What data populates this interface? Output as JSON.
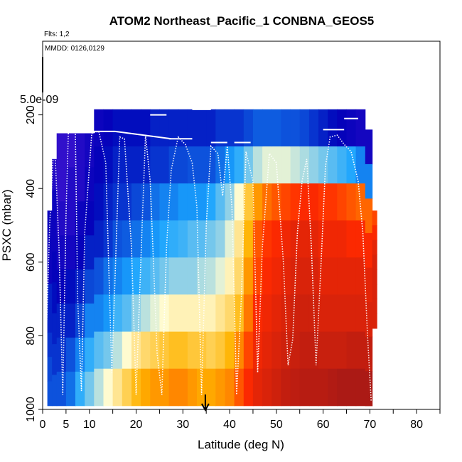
{
  "chart_data": {
    "type": "heatmap",
    "title": "ATOM2 Northeast_Pacific_1 CONBNA_GEOS5",
    "xlabel": "Latitude (deg N)",
    "ylabel": "PSXC (mbar)",
    "flights_note": "Flts: 1,2",
    "dates_note": "MMDD: 0126,0129",
    "scale_note": "5.0e-09",
    "xlim": [
      0,
      85
    ],
    "ylim": [
      1000,
      0
    ],
    "x_ticks": [
      0,
      5,
      10,
      20,
      30,
      40,
      50,
      60,
      70,
      80
    ],
    "x_tick_labels": [
      "0",
      "5",
      "10",
      "20",
      "30",
      "40",
      "50",
      "60",
      "70",
      "80"
    ],
    "x_minor_ticks": [
      15,
      25,
      35,
      45,
      55,
      65,
      75,
      85
    ],
    "y_ticks": [
      200,
      400,
      600,
      800,
      1000
    ],
    "y_tick_labels": [
      "200",
      "400",
      "600",
      "800",
      "1000"
    ],
    "arrow_latitude": 34.8,
    "colors": {
      "high": "#a01818",
      "mid_high": "#ff2a00",
      "mid": "#ffb300",
      "pale": "#fffbd0",
      "low_mid": "#19a4ff",
      "low": "#0000b8",
      "lowest": "#7a28e8",
      "flight_track": "#ffffff"
    },
    "flight_track": [
      [
        0.4,
        960
      ],
      [
        1.5,
        500
      ],
      [
        2.5,
        250
      ],
      [
        3.5,
        560
      ],
      [
        4.3,
        960
      ],
      [
        5.0,
        470
      ],
      [
        5.5,
        245
      ],
      [
        7.0,
        245
      ],
      [
        7.5,
        700
      ],
      [
        8.3,
        950
      ],
      [
        9.0,
        520
      ],
      [
        10.5,
        250
      ],
      [
        12,
        245
      ],
      [
        13.5,
        330
      ],
      [
        14.8,
        900
      ],
      [
        15.5,
        640
      ],
      [
        16.5,
        260
      ],
      [
        17.5,
        265
      ],
      [
        19.0,
        560
      ],
      [
        20.0,
        960
      ],
      [
        21.0,
        600
      ],
      [
        22.0,
        255
      ],
      [
        23.0,
        380
      ],
      [
        24.5,
        850
      ],
      [
        25.5,
        960
      ],
      [
        26.5,
        560
      ],
      [
        27.5,
        350
      ],
      [
        29.0,
        260
      ],
      [
        30.5,
        280
      ],
      [
        32.0,
        330
      ],
      [
        33.0,
        450
      ],
      [
        34.0,
        960
      ],
      [
        35.0,
        500
      ],
      [
        36.0,
        285
      ],
      [
        37.5,
        305
      ],
      [
        38.5,
        420
      ],
      [
        39.5,
        285
      ],
      [
        40.5,
        450
      ],
      [
        41.5,
        960
      ],
      [
        42.5,
        700
      ],
      [
        43.5,
        300
      ],
      [
        45.0,
        380
      ],
      [
        46.0,
        900
      ],
      [
        47.0,
        560
      ],
      [
        48.5,
        305
      ],
      [
        50.0,
        330
      ],
      [
        51.5,
        600
      ],
      [
        52.5,
        880
      ],
      [
        53.5,
        810
      ],
      [
        54.5,
        520
      ],
      [
        55.5,
        380
      ],
      [
        56.5,
        320
      ],
      [
        57.5,
        560
      ],
      [
        58.5,
        880
      ],
      [
        59.5,
        620
      ],
      [
        60.5,
        340
      ],
      [
        61.5,
        260
      ],
      [
        63.0,
        255
      ],
      [
        64.5,
        280
      ],
      [
        66.0,
        300
      ],
      [
        67.5,
        380
      ],
      [
        68.5,
        520
      ],
      [
        69.5,
        800
      ],
      [
        70.3,
        980
      ]
    ],
    "flight_top_segments": [
      [
        2.5,
        245,
        7.5,
        245
      ],
      [
        7.5,
        245,
        15.5,
        245
      ],
      [
        15.5,
        245,
        27.5,
        265
      ],
      [
        23.0,
        200,
        26.5,
        200
      ],
      [
        27.0,
        265,
        29.0,
        265
      ],
      [
        29.0,
        265,
        32.0,
        265
      ],
      [
        32.0,
        185,
        36.0,
        185
      ],
      [
        36.0,
        275,
        39.5,
        275
      ],
      [
        41.0,
        275,
        44.5,
        275
      ],
      [
        60.0,
        240,
        64.5,
        240
      ],
      [
        64.5,
        210,
        67.5,
        210
      ]
    ],
    "heatmap_columns": [
      {
        "x0": 1.0,
        "x1": 2.0,
        "top": 460,
        "bottom": 990,
        "v": [
          0.15,
          0.15,
          0.15,
          0.2,
          0.2,
          0.22,
          0.24,
          0.25
        ]
      },
      {
        "x0": 2.0,
        "x1": 3.0,
        "top": 320,
        "bottom": 990,
        "v": [
          0.12,
          0.15,
          0.15,
          0.16,
          0.18,
          0.2,
          0.22,
          0.25
        ]
      },
      {
        "x0": 3.0,
        "x1": 5.0,
        "top": 250,
        "bottom": 990,
        "v": [
          0.1,
          0.1,
          0.12,
          0.14,
          0.16,
          0.2,
          0.22,
          0.25
        ]
      },
      {
        "x0": 5.0,
        "x1": 7.0,
        "top": 250,
        "bottom": 990,
        "v": [
          0.1,
          0.12,
          0.12,
          0.14,
          0.18,
          0.2,
          0.25,
          0.28
        ]
      },
      {
        "x0": 7.0,
        "x1": 9.0,
        "top": 250,
        "bottom": 990,
        "v": [
          0.12,
          0.12,
          0.15,
          0.16,
          0.2,
          0.24,
          0.3,
          0.35
        ]
      },
      {
        "x0": 9.0,
        "x1": 11.0,
        "top": 250,
        "bottom": 990,
        "v": [
          0.14,
          0.15,
          0.16,
          0.2,
          0.24,
          0.3,
          0.35,
          0.4
        ]
      },
      {
        "x0": 11.0,
        "x1": 13.0,
        "top": 185,
        "bottom": 990,
        "v": [
          0.15,
          0.16,
          0.18,
          0.2,
          0.25,
          0.3,
          0.38,
          0.45
        ]
      },
      {
        "x0": 13.0,
        "x1": 15.0,
        "top": 185,
        "bottom": 990,
        "v": [
          0.16,
          0.18,
          0.2,
          0.22,
          0.28,
          0.32,
          0.4,
          0.5
        ]
      },
      {
        "x0": 15.0,
        "x1": 17.0,
        "top": 185,
        "bottom": 990,
        "v": [
          0.18,
          0.2,
          0.22,
          0.25,
          0.3,
          0.36,
          0.45,
          0.55
        ]
      },
      {
        "x0": 17.0,
        "x1": 19.0,
        "top": 185,
        "bottom": 990,
        "v": [
          0.18,
          0.2,
          0.22,
          0.26,
          0.32,
          0.38,
          0.5,
          0.6
        ]
      },
      {
        "x0": 19.0,
        "x1": 21.0,
        "top": 185,
        "bottom": 990,
        "v": [
          0.18,
          0.2,
          0.24,
          0.28,
          0.34,
          0.42,
          0.55,
          0.65
        ]
      },
      {
        "x0": 21.0,
        "x1": 23.0,
        "top": 185,
        "bottom": 990,
        "v": [
          0.18,
          0.2,
          0.25,
          0.3,
          0.36,
          0.45,
          0.58,
          0.68
        ]
      },
      {
        "x0": 23.0,
        "x1": 25.0,
        "top": 185,
        "bottom": 990,
        "v": [
          0.2,
          0.22,
          0.28,
          0.32,
          0.38,
          0.48,
          0.6,
          0.7
        ]
      },
      {
        "x0": 25.0,
        "x1": 27.0,
        "top": 185,
        "bottom": 990,
        "v": [
          0.2,
          0.22,
          0.3,
          0.34,
          0.4,
          0.5,
          0.62,
          0.7
        ]
      },
      {
        "x0": 27.0,
        "x1": 29.0,
        "top": 185,
        "bottom": 990,
        "v": [
          0.2,
          0.24,
          0.3,
          0.35,
          0.42,
          0.52,
          0.64,
          0.72
        ]
      },
      {
        "x0": 29.0,
        "x1": 31.0,
        "top": 185,
        "bottom": 990,
        "v": [
          0.2,
          0.24,
          0.32,
          0.36,
          0.42,
          0.52,
          0.64,
          0.72
        ]
      },
      {
        "x0": 31.0,
        "x1": 33.0,
        "top": 185,
        "bottom": 990,
        "v": [
          0.2,
          0.25,
          0.32,
          0.38,
          0.42,
          0.52,
          0.62,
          0.7
        ]
      },
      {
        "x0": 33.0,
        "x1": 35.0,
        "top": 185,
        "bottom": 990,
        "v": [
          0.2,
          0.25,
          0.32,
          0.38,
          0.44,
          0.52,
          0.62,
          0.68
        ]
      },
      {
        "x0": 35.0,
        "x1": 37.0,
        "top": 185,
        "bottom": 990,
        "v": [
          0.2,
          0.25,
          0.34,
          0.4,
          0.45,
          0.52,
          0.6,
          0.68
        ]
      },
      {
        "x0": 37.0,
        "x1": 39.0,
        "top": 185,
        "bottom": 990,
        "v": [
          0.22,
          0.28,
          0.38,
          0.42,
          0.48,
          0.55,
          0.62,
          0.7
        ]
      },
      {
        "x0": 39.0,
        "x1": 41.0,
        "top": 185,
        "bottom": 990,
        "v": [
          0.22,
          0.32,
          0.42,
          0.48,
          0.52,
          0.58,
          0.66,
          0.72
        ]
      },
      {
        "x0": 41.0,
        "x1": 43.0,
        "top": 185,
        "bottom": 990,
        "v": [
          0.22,
          0.35,
          0.5,
          0.55,
          0.58,
          0.64,
          0.72,
          0.78
        ]
      },
      {
        "x0": 43.0,
        "x1": 45.0,
        "top": 185,
        "bottom": 990,
        "v": [
          0.24,
          0.4,
          0.62,
          0.66,
          0.7,
          0.74,
          0.8,
          0.84
        ]
      },
      {
        "x0": 45.0,
        "x1": 47.0,
        "top": 185,
        "bottom": 990,
        "v": [
          0.26,
          0.45,
          0.7,
          0.78,
          0.8,
          0.84,
          0.86,
          0.88
        ]
      },
      {
        "x0": 47.0,
        "x1": 49.0,
        "top": 185,
        "bottom": 990,
        "v": [
          0.26,
          0.48,
          0.75,
          0.82,
          0.84,
          0.86,
          0.88,
          0.9
        ]
      },
      {
        "x0": 49.0,
        "x1": 51.0,
        "top": 185,
        "bottom": 990,
        "v": [
          0.26,
          0.48,
          0.78,
          0.84,
          0.86,
          0.88,
          0.9,
          0.92
        ]
      },
      {
        "x0": 51.0,
        "x1": 53.0,
        "top": 185,
        "bottom": 990,
        "v": [
          0.25,
          0.48,
          0.8,
          0.86,
          0.88,
          0.9,
          0.92,
          0.94
        ]
      },
      {
        "x0": 53.0,
        "x1": 55.0,
        "top": 185,
        "bottom": 990,
        "v": [
          0.25,
          0.46,
          0.82,
          0.88,
          0.9,
          0.92,
          0.93,
          0.95
        ]
      },
      {
        "x0": 55.0,
        "x1": 57.0,
        "top": 185,
        "bottom": 990,
        "v": [
          0.24,
          0.44,
          0.84,
          0.88,
          0.9,
          0.92,
          0.94,
          0.96
        ]
      },
      {
        "x0": 57.0,
        "x1": 59.0,
        "top": 185,
        "bottom": 990,
        "v": [
          0.22,
          0.42,
          0.84,
          0.88,
          0.9,
          0.92,
          0.94,
          0.96
        ]
      },
      {
        "x0": 59.0,
        "x1": 61.0,
        "top": 185,
        "bottom": 990,
        "v": [
          0.2,
          0.4,
          0.82,
          0.86,
          0.88,
          0.9,
          0.93,
          0.96
        ]
      },
      {
        "x0": 61.0,
        "x1": 63.0,
        "top": 185,
        "bottom": 990,
        "v": [
          0.18,
          0.38,
          0.82,
          0.86,
          0.88,
          0.9,
          0.93,
          0.97
        ]
      },
      {
        "x0": 63.0,
        "x1": 65.0,
        "top": 185,
        "bottom": 990,
        "v": [
          0.16,
          0.36,
          0.8,
          0.86,
          0.88,
          0.9,
          0.93,
          0.98
        ]
      },
      {
        "x0": 65.0,
        "x1": 67.0,
        "top": 185,
        "bottom": 990,
        "v": [
          0.15,
          0.34,
          0.78,
          0.84,
          0.88,
          0.9,
          0.94,
          0.98
        ]
      },
      {
        "x0": 67.0,
        "x1": 69.0,
        "top": 185,
        "bottom": 990,
        "v": [
          0.14,
          0.3,
          0.76,
          0.84,
          0.88,
          0.9,
          0.94,
          0.98
        ]
      },
      {
        "x0": 69.0,
        "x1": 70.5,
        "top": 240,
        "bottom": 990,
        "v": [
          0.14,
          0.3,
          0.76,
          0.84,
          0.88,
          0.9,
          0.94,
          0.98
        ]
      },
      {
        "x0": 70.5,
        "x1": 71.5,
        "top": 460,
        "bottom": 780,
        "v": [
          0.8,
          0.84,
          0.88,
          0.9,
          0.9,
          0.9,
          0.9,
          0.9
        ]
      }
    ]
  }
}
